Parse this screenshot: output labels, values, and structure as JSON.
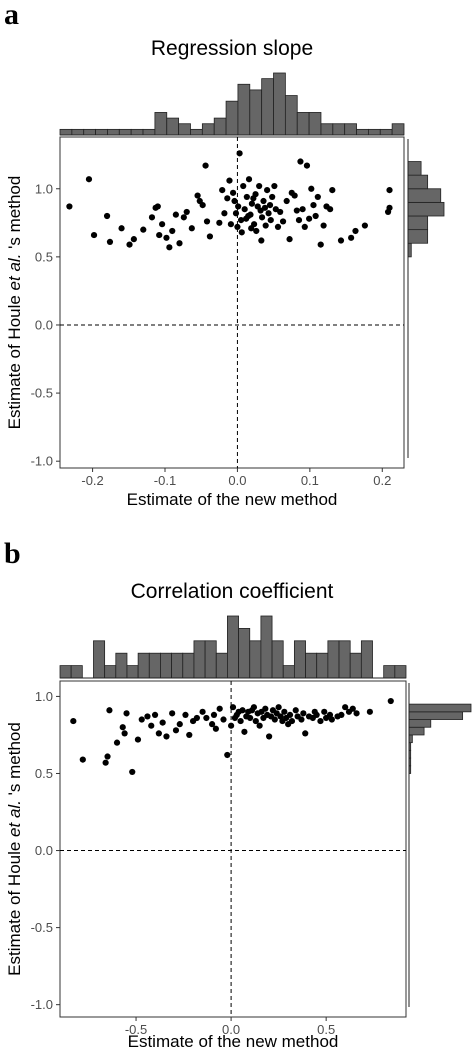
{
  "chart_data": [
    {
      "panel": "a",
      "type": "scatter",
      "title": "Regression slope",
      "xlabel": "Estimate of the new method",
      "ylabel_parts": [
        "Estimate of Houle ",
        "et al.",
        " 's method"
      ],
      "xlim": [
        -0.245,
        0.23
      ],
      "ylim": [
        -1.05,
        1.38
      ],
      "xticks": [
        -0.2,
        -0.1,
        0.0,
        0.1,
        0.2
      ],
      "xtick_labels": [
        "-0.2",
        "-0.1",
        "0.0",
        "0.1",
        "0.2"
      ],
      "yticks": [
        -1.0,
        -0.5,
        0.0,
        0.5,
        1.0
      ],
      "ytick_labels": [
        "-1.0",
        "-0.5",
        "0.0",
        "0.5",
        "1.0"
      ],
      "reference_lines": {
        "x": 0.0,
        "y": 0.0,
        "style": "dashed"
      },
      "grid": false,
      "points": [
        [
          -0.232,
          0.87
        ],
        [
          -0.205,
          1.07
        ],
        [
          -0.198,
          0.66
        ],
        [
          -0.18,
          0.8
        ],
        [
          -0.176,
          0.61
        ],
        [
          -0.16,
          0.71
        ],
        [
          -0.149,
          0.59
        ],
        [
          -0.143,
          0.63
        ],
        [
          -0.13,
          0.7
        ],
        [
          -0.118,
          0.79
        ],
        [
          -0.113,
          0.86
        ],
        [
          -0.11,
          0.87
        ],
        [
          -0.108,
          0.66
        ],
        [
          -0.104,
          0.74
        ],
        [
          -0.098,
          0.64
        ],
        [
          -0.094,
          0.57
        ],
        [
          -0.09,
          0.69
        ],
        [
          -0.085,
          0.81
        ],
        [
          -0.08,
          0.6
        ],
        [
          -0.074,
          0.79
        ],
        [
          -0.07,
          0.83
        ],
        [
          -0.063,
          0.71
        ],
        [
          -0.055,
          0.95
        ],
        [
          -0.052,
          0.91
        ],
        [
          -0.048,
          0.88
        ],
        [
          -0.044,
          1.17
        ],
        [
          -0.042,
          0.76
        ],
        [
          -0.038,
          0.65
        ],
        [
          -0.025,
          0.75
        ],
        [
          -0.021,
          0.99
        ],
        [
          -0.018,
          0.82
        ],
        [
          -0.014,
          0.93
        ],
        [
          -0.011,
          1.06
        ],
        [
          -0.009,
          0.74
        ],
        [
          -0.006,
          0.97
        ],
        [
          -0.004,
          0.91
        ],
        [
          -0.002,
          0.82
        ],
        [
          0.0,
          0.72
        ],
        [
          0.001,
          0.87
        ],
        [
          0.003,
          1.26
        ],
        [
          0.005,
          0.77
        ],
        [
          0.006,
          0.68
        ],
        [
          0.008,
          1.02
        ],
        [
          0.01,
          0.85
        ],
        [
          0.012,
          0.78
        ],
        [
          0.013,
          0.94
        ],
        [
          0.015,
          0.8
        ],
        [
          0.016,
          1.07
        ],
        [
          0.018,
          0.81
        ],
        [
          0.019,
          0.71
        ],
        [
          0.02,
          0.89
        ],
        [
          0.022,
          0.93
        ],
        [
          0.023,
          0.74
        ],
        [
          0.025,
          0.96
        ],
        [
          0.026,
          0.69
        ],
        [
          0.028,
          0.87
        ],
        [
          0.03,
          1.02
        ],
        [
          0.032,
          0.84
        ],
        [
          0.033,
          0.62
        ],
        [
          0.034,
          0.79
        ],
        [
          0.036,
          0.91
        ],
        [
          0.038,
          0.86
        ],
        [
          0.039,
          0.73
        ],
        [
          0.041,
          0.99
        ],
        [
          0.043,
          0.82
        ],
        [
          0.045,
          0.88
        ],
        [
          0.046,
          0.77
        ],
        [
          0.048,
          0.94
        ],
        [
          0.051,
          1.02
        ],
        [
          0.053,
          0.85
        ],
        [
          0.056,
          0.72
        ],
        [
          0.059,
          0.83
        ],
        [
          0.063,
          0.76
        ],
        [
          0.068,
          0.91
        ],
        [
          0.072,
          0.63
        ],
        [
          0.075,
          0.97
        ],
        [
          0.079,
          0.95
        ],
        [
          0.082,
          0.84
        ],
        [
          0.085,
          0.77
        ],
        [
          0.087,
          1.2
        ],
        [
          0.09,
          0.85
        ],
        [
          0.093,
          0.72
        ],
        [
          0.096,
          1.17
        ],
        [
          0.099,
          0.78
        ],
        [
          0.102,
          1.0
        ],
        [
          0.105,
          0.88
        ],
        [
          0.108,
          0.8
        ],
        [
          0.111,
          0.94
        ],
        [
          0.115,
          0.59
        ],
        [
          0.119,
          0.73
        ],
        [
          0.123,
          0.87
        ],
        [
          0.128,
          0.85
        ],
        [
          0.143,
          0.62
        ],
        [
          0.157,
          0.64
        ],
        [
          0.163,
          0.69
        ],
        [
          0.176,
          0.73
        ],
        [
          0.21,
          0.99
        ],
        [
          0.21,
          0.86
        ],
        [
          0.208,
          0.83
        ],
        [
          0.131,
          0.99
        ]
      ],
      "top_histogram_counts": [
        1,
        1,
        1,
        1,
        1,
        1,
        1,
        1,
        4,
        3,
        2,
        1,
        2,
        3,
        6,
        9,
        8,
        10,
        11,
        7,
        4,
        4,
        2,
        2,
        2,
        1,
        1,
        1,
        2
      ],
      "right_histogram": [
        {
          "y0": 0.5,
          "y1": 0.6,
          "count": 1
        },
        {
          "y0": 0.6,
          "y1": 0.7,
          "count": 6
        },
        {
          "y0": 0.7,
          "y1": 0.8,
          "count": 6
        },
        {
          "y0": 0.8,
          "y1": 0.9,
          "count": 11
        },
        {
          "y0": 0.9,
          "y1": 1.0,
          "count": 10
        },
        {
          "y0": 1.0,
          "y1": 1.1,
          "count": 6
        },
        {
          "y0": 1.1,
          "y1": 1.2,
          "count": 4
        }
      ]
    },
    {
      "panel": "b",
      "type": "scatter",
      "title": "Correlation coefficient",
      "xlabel": "Estimate of the new method",
      "ylabel_parts": [
        "Estimate of Houle ",
        "et al.",
        " 's method"
      ],
      "xlim": [
        -0.9,
        0.92
      ],
      "ylim": [
        -1.08,
        1.1
      ],
      "xticks": [
        -0.5,
        0.0,
        0.5
      ],
      "xtick_labels": [
        "-0.5",
        "0.0",
        "0.5"
      ],
      "yticks": [
        -1.0,
        -0.5,
        0.0,
        0.5,
        1.0
      ],
      "ytick_labels": [
        "-1.0",
        "-0.5",
        "0.0",
        "0.5",
        "1.0"
      ],
      "reference_lines": {
        "x": 0.0,
        "y": 0.0,
        "style": "dashed"
      },
      "grid": false,
      "points": [
        [
          -0.83,
          0.84
        ],
        [
          -0.78,
          0.59
        ],
        [
          -0.66,
          0.57
        ],
        [
          -0.65,
          0.61
        ],
        [
          -0.64,
          0.91
        ],
        [
          -0.6,
          0.7
        ],
        [
          -0.57,
          0.8
        ],
        [
          -0.56,
          0.76
        ],
        [
          -0.55,
          0.89
        ],
        [
          -0.52,
          0.51
        ],
        [
          -0.49,
          0.72
        ],
        [
          -0.47,
          0.85
        ],
        [
          -0.44,
          0.87
        ],
        [
          -0.42,
          0.81
        ],
        [
          -0.4,
          0.88
        ],
        [
          -0.38,
          0.76
        ],
        [
          -0.36,
          0.83
        ],
        [
          -0.34,
          0.74
        ],
        [
          -0.31,
          0.89
        ],
        [
          -0.29,
          0.78
        ],
        [
          -0.27,
          0.82
        ],
        [
          -0.24,
          0.88
        ],
        [
          -0.22,
          0.75
        ],
        [
          -0.2,
          0.84
        ],
        [
          -0.18,
          0.86
        ],
        [
          -0.15,
          0.9
        ],
        [
          -0.13,
          0.86
        ],
        [
          -0.1,
          0.82
        ],
        [
          -0.08,
          0.79
        ],
        [
          -0.06,
          0.92
        ],
        [
          -0.04,
          0.85
        ],
        [
          -0.02,
          0.62
        ],
        [
          0.0,
          0.81
        ],
        [
          0.01,
          0.93
        ],
        [
          0.02,
          0.86
        ],
        [
          0.03,
          0.88
        ],
        [
          0.05,
          0.84
        ],
        [
          0.06,
          0.91
        ],
        [
          0.07,
          0.77
        ],
        [
          0.08,
          0.87
        ],
        [
          0.09,
          0.9
        ],
        [
          0.1,
          0.86
        ],
        [
          0.11,
          0.91
        ],
        [
          0.12,
          0.93
        ],
        [
          0.13,
          0.84
        ],
        [
          0.14,
          0.89
        ],
        [
          0.15,
          0.81
        ],
        [
          0.16,
          0.9
        ],
        [
          0.17,
          0.86
        ],
        [
          0.18,
          0.92
        ],
        [
          0.19,
          0.88
        ],
        [
          0.2,
          0.74
        ],
        [
          0.21,
          0.87
        ],
        [
          0.22,
          0.91
        ],
        [
          0.23,
          0.85
        ],
        [
          0.24,
          0.89
        ],
        [
          0.25,
          0.93
        ],
        [
          0.26,
          0.87
        ],
        [
          0.28,
          0.9
        ],
        [
          0.29,
          0.86
        ],
        [
          0.3,
          0.82
        ],
        [
          0.31,
          0.88
        ],
        [
          0.32,
          0.84
        ],
        [
          0.34,
          0.91
        ],
        [
          0.35,
          0.87
        ],
        [
          0.37,
          0.85
        ],
        [
          0.38,
          0.89
        ],
        [
          0.39,
          0.76
        ],
        [
          0.41,
          0.87
        ],
        [
          0.43,
          0.86
        ],
        [
          0.45,
          0.88
        ],
        [
          0.47,
          0.84
        ],
        [
          0.49,
          0.9
        ],
        [
          0.5,
          0.86
        ],
        [
          0.52,
          0.88
        ],
        [
          0.53,
          0.85
        ],
        [
          0.56,
          0.87
        ],
        [
          0.6,
          0.93
        ],
        [
          0.62,
          0.9
        ],
        [
          0.64,
          0.92
        ],
        [
          0.66,
          0.89
        ],
        [
          0.73,
          0.9
        ],
        [
          0.84,
          0.97
        ],
        [
          -0.09,
          0.88
        ],
        [
          0.04,
          0.9
        ],
        [
          0.27,
          0.84
        ],
        [
          0.44,
          0.9
        ],
        [
          0.58,
          0.88
        ]
      ],
      "top_histogram_counts": [
        1,
        1,
        0,
        3,
        1,
        2,
        1,
        2,
        2,
        2,
        2,
        2,
        3,
        3,
        2,
        5,
        4,
        3,
        5,
        3,
        1,
        3,
        2,
        2,
        3,
        3,
        2,
        3,
        0,
        1,
        1
      ],
      "right_histogram": [
        {
          "y0": 0.5,
          "y1": 0.55,
          "count": 1
        },
        {
          "y0": 0.55,
          "y1": 0.6,
          "count": 1
        },
        {
          "y0": 0.6,
          "y1": 0.65,
          "count": 1
        },
        {
          "y0": 0.65,
          "y1": 0.7,
          "count": 1
        },
        {
          "y0": 0.7,
          "y1": 0.75,
          "count": 2
        },
        {
          "y0": 0.75,
          "y1": 0.8,
          "count": 9
        },
        {
          "y0": 0.8,
          "y1": 0.85,
          "count": 13
        },
        {
          "y0": 0.85,
          "y1": 0.9,
          "count": 32
        },
        {
          "y0": 0.9,
          "y1": 0.95,
          "count": 37
        }
      ]
    }
  ]
}
